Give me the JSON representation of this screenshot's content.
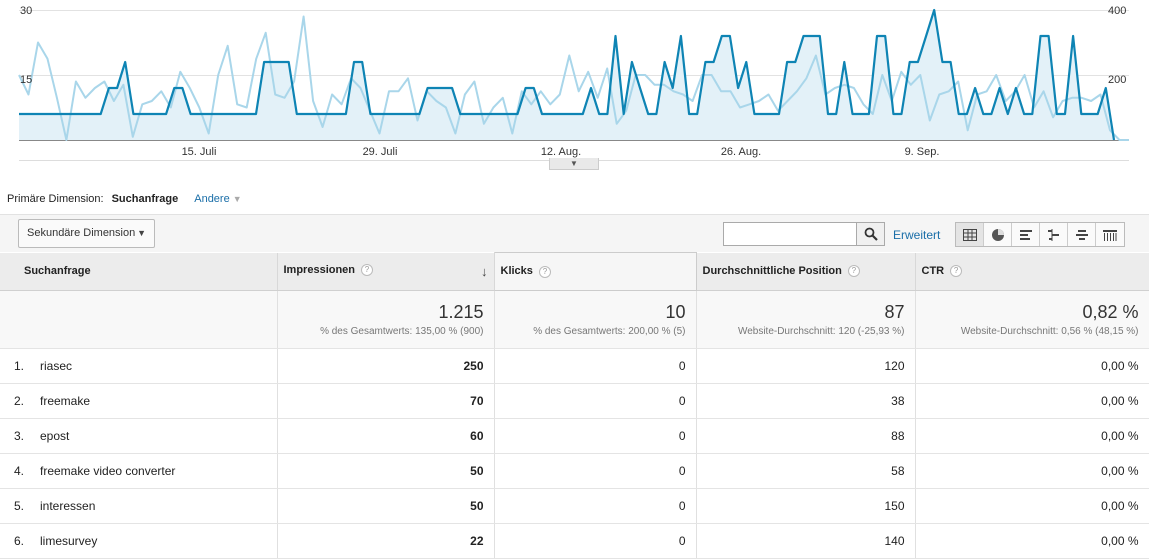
{
  "chart_data": {
    "type": "line",
    "y_left_ticks": [
      "30",
      "15"
    ],
    "y_right_ticks": [
      "400",
      "200"
    ],
    "x_tick_labels": [
      "15. Juli",
      "29. Juli",
      "12. Aug.",
      "26. Aug.",
      "9. Sep."
    ],
    "ylim_left": [
      0,
      30
    ],
    "ylim_right": [
      0,
      400
    ],
    "series": [
      {
        "axis": "left",
        "color": "#0e84b4",
        "fill": true,
        "values": [
          6,
          6,
          6,
          6,
          6,
          6,
          6,
          6,
          6,
          6,
          6,
          12,
          12,
          18,
          6,
          6,
          6,
          6,
          6,
          12,
          12,
          6,
          6,
          6,
          6,
          6,
          6,
          6,
          6,
          6,
          18,
          18,
          18,
          18,
          6,
          6,
          6,
          6,
          6,
          6,
          6,
          18,
          18,
          6,
          6,
          6,
          6,
          6,
          6,
          6,
          12,
          12,
          12,
          12,
          6,
          6,
          6,
          6,
          6,
          6,
          6,
          6,
          12,
          12,
          6,
          6,
          6,
          6,
          6,
          6,
          12,
          6,
          6,
          24,
          6,
          18,
          12,
          6,
          6,
          18,
          12,
          24,
          6,
          6,
          18,
          18,
          24,
          24,
          12,
          18,
          6,
          6,
          6,
          6,
          18,
          18,
          24,
          24,
          24,
          6,
          6,
          18,
          6,
          6,
          6,
          24,
          24,
          6,
          6,
          18,
          18,
          24,
          30,
          18,
          18,
          6,
          6,
          12,
          6,
          6,
          12,
          6,
          12,
          6,
          6,
          24,
          24,
          6,
          6,
          24,
          6,
          6,
          6,
          12,
          0
        ]
      },
      {
        "axis": "right",
        "color": "#a9d6ea",
        "fill": false,
        "values": [
          200,
          140,
          300,
          250,
          130,
          0,
          180,
          130,
          160,
          180,
          120,
          170,
          10,
          110,
          120,
          150,
          100,
          210,
          160,
          100,
          20,
          200,
          290,
          110,
          100,
          250,
          330,
          140,
          130,
          180,
          380,
          120,
          40,
          140,
          110,
          190,
          160,
          90,
          20,
          150,
          150,
          190,
          60,
          150,
          120,
          100,
          20,
          140,
          180,
          50,
          100,
          130,
          20,
          150,
          110,
          150,
          110,
          140,
          260,
          150,
          210,
          130,
          220,
          50,
          90,
          200,
          200,
          170,
          170,
          150,
          140,
          120,
          200,
          200,
          150,
          150,
          100,
          110,
          120,
          140,
          90,
          120,
          150,
          190,
          260,
          140,
          160,
          170,
          160,
          110,
          80,
          200,
          120,
          210,
          170,
          200,
          60,
          140,
          150,
          180,
          30,
          140,
          150,
          200,
          120,
          150,
          200,
          100,
          150,
          70,
          120,
          130,
          130,
          120,
          140,
          30,
          0,
          0
        ]
      }
    ]
  },
  "dimension": {
    "primary_label": "Primäre Dimension:",
    "active": "Suchanfrage",
    "other": "Andere"
  },
  "toolbar": {
    "secondary_dimension": "Sekundäre Dimension",
    "search_placeholder": "",
    "advanced_link": "Erweitert"
  },
  "table": {
    "headers": {
      "query": "Suchanfrage",
      "impressions": "Impressionen",
      "clicks": "Klicks",
      "position": "Durchschnittliche Position",
      "ctr": "CTR"
    },
    "help_glyph": "?",
    "sort_glyph": "↓",
    "totals": {
      "impressions": "1.215",
      "impressions_sub": "% des Gesamtwerts: 135,00 % (900)",
      "clicks": "10",
      "clicks_sub": "% des Gesamtwerts: 200,00 % (5)",
      "position": "87",
      "position_sub": "Website-Durchschnitt: 120 (-25,93 %)",
      "ctr": "0,82 %",
      "ctr_sub": "Website-Durchschnitt: 0,56 % (48,15 %)"
    },
    "rows": [
      {
        "idx": "1.",
        "query": "riasec",
        "impressions": "250",
        "clicks": "0",
        "position": "120",
        "ctr": "0,00 %"
      },
      {
        "idx": "2.",
        "query": "freemake",
        "impressions": "70",
        "clicks": "0",
        "position": "38",
        "ctr": "0,00 %"
      },
      {
        "idx": "3.",
        "query": "epost",
        "impressions": "60",
        "clicks": "0",
        "position": "88",
        "ctr": "0,00 %"
      },
      {
        "idx": "4.",
        "query": "freemake video converter",
        "impressions": "50",
        "clicks": "0",
        "position": "58",
        "ctr": "0,00 %"
      },
      {
        "idx": "5.",
        "query": "interessen",
        "impressions": "50",
        "clicks": "0",
        "position": "150",
        "ctr": "0,00 %"
      },
      {
        "idx": "6.",
        "query": "limesurvey",
        "impressions": "22",
        "clicks": "0",
        "position": "140",
        "ctr": "0,00 %"
      }
    ]
  }
}
